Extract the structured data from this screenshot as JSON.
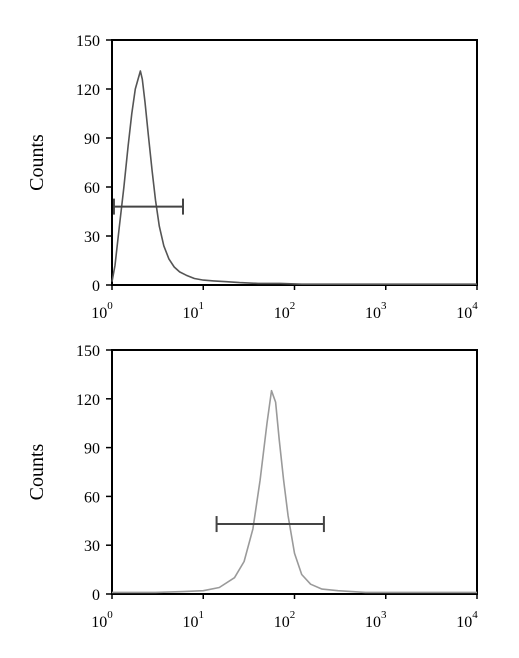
{
  "chart_data": [
    {
      "type": "line",
      "title": "",
      "xlabel": "",
      "ylabel": "Counts",
      "x_scale": "log",
      "xlim": [
        1,
        10000
      ],
      "ylim": [
        0,
        150
      ],
      "grid": false,
      "x_ticks": [
        {
          "base": "10",
          "exp": "0",
          "value": 1
        },
        {
          "base": "10",
          "exp": "1",
          "value": 10
        },
        {
          "base": "10",
          "exp": "2",
          "value": 100
        },
        {
          "base": "10",
          "exp": "3",
          "value": 1000
        },
        {
          "base": "10",
          "exp": "4",
          "value": 10000
        }
      ],
      "y_ticks": [
        {
          "label": "0",
          "value": 0
        },
        {
          "label": "30",
          "value": 30
        },
        {
          "label": "60",
          "value": 60
        },
        {
          "label": "90",
          "value": 90
        },
        {
          "label": "120",
          "value": 120
        },
        {
          "label": "150",
          "value": 150
        }
      ],
      "line_color": "#555555",
      "series": [
        {
          "x": [
            1,
            1.08,
            1.2,
            1.35,
            1.5,
            1.65,
            1.8,
            1.95,
            2.05,
            2.15,
            2.3,
            2.5,
            2.75,
            3.0,
            3.3,
            3.7,
            4.2,
            4.8,
            5.5,
            6.5,
            8,
            10,
            13,
            18,
            25,
            40,
            70,
            120,
            300,
            1000,
            3000,
            10000
          ],
          "y": [
            2,
            12,
            35,
            60,
            85,
            105,
            120,
            127,
            131,
            126,
            112,
            92,
            70,
            52,
            36,
            24,
            16,
            11,
            8,
            6,
            4,
            3,
            2.5,
            2,
            1.5,
            1,
            1,
            0.5,
            0.5,
            0.5,
            0.5,
            0.5
          ]
        }
      ],
      "gate": {
        "x_start": 1.05,
        "x_end": 6.0,
        "y": 48
      }
    },
    {
      "type": "line",
      "title": "",
      "xlabel": "",
      "ylabel": "Counts",
      "x_scale": "log",
      "xlim": [
        1,
        10000
      ],
      "ylim": [
        0,
        150
      ],
      "grid": false,
      "x_ticks": [
        {
          "base": "10",
          "exp": "0",
          "value": 1
        },
        {
          "base": "10",
          "exp": "1",
          "value": 10
        },
        {
          "base": "10",
          "exp": "2",
          "value": 100
        },
        {
          "base": "10",
          "exp": "3",
          "value": 1000
        },
        {
          "base": "10",
          "exp": "4",
          "value": 10000
        }
      ],
      "y_ticks": [
        {
          "label": "0",
          "value": 0
        },
        {
          "label": "30",
          "value": 30
        },
        {
          "label": "60",
          "value": 60
        },
        {
          "label": "90",
          "value": 90
        },
        {
          "label": "120",
          "value": 120
        },
        {
          "label": "150",
          "value": 150
        }
      ],
      "line_color": "#9a9a9a",
      "series": [
        {
          "x": [
            1,
            3,
            6,
            10,
            15,
            22,
            28,
            35,
            42,
            50,
            56,
            62,
            68,
            76,
            85,
            100,
            120,
            150,
            200,
            300,
            600,
            1000,
            3000,
            10000
          ],
          "y": [
            1,
            1,
            1.5,
            2,
            4,
            10,
            20,
            40,
            70,
            105,
            125,
            118,
            95,
            70,
            48,
            25,
            12,
            6,
            3,
            2,
            1,
            1,
            1,
            1
          ]
        }
      ],
      "gate": {
        "x_start": 14,
        "x_end": 210,
        "y": 43
      }
    }
  ]
}
